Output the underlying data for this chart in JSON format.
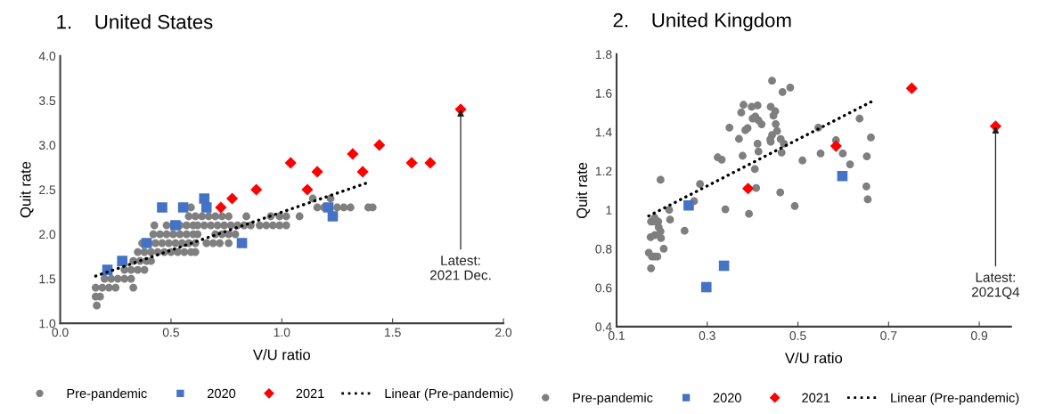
{
  "chart_data": [
    {
      "type": "scatter",
      "title": "1.    United States",
      "xlabel": "V/U ratio",
      "ylabel": "Quit rate",
      "xlim": [
        0,
        2
      ],
      "xticks": [
        {
          "value": 0,
          "label": "0.0"
        },
        0.5,
        {
          "value": 1,
          "label": "1.0"
        },
        1.5,
        {
          "value": 2,
          "label": "2.0"
        }
      ],
      "ylim": [
        1,
        4
      ],
      "yticks": [
        {
          "value": 1,
          "label": "1.0"
        },
        1.5,
        {
          "value": 2,
          "label": "2.0"
        },
        2.5,
        {
          "value": 3,
          "label": "3.0"
        },
        3.5,
        {
          "value": 4,
          "label": "4.0"
        }
      ],
      "legend": "bottom",
      "grid": false,
      "series": [
        {
          "name": "Pre-pandemic",
          "color": "#7f7f7f",
          "marker": "circle",
          "x": [
            0.165,
            0.16,
            0.18,
            0.16,
            0.19,
            0.22,
            0.25,
            0.33,
            0.2,
            0.23,
            0.26,
            0.29,
            0.32,
            0.29,
            0.32,
            0.35,
            0.38,
            0.33,
            0.36,
            0.39,
            0.41,
            0.35,
            0.38,
            0.41,
            0.44,
            0.47,
            0.5,
            0.53,
            0.56,
            0.59,
            0.61,
            0.37,
            0.4,
            0.43,
            0.46,
            0.49,
            0.52,
            0.55,
            0.58,
            0.61,
            0.66,
            0.69,
            0.72,
            0.76,
            0.42,
            0.45,
            0.48,
            0.51,
            0.54,
            0.57,
            0.6,
            0.62,
            0.7,
            0.73,
            0.76,
            0.79,
            0.425,
            0.48,
            0.51,
            0.54,
            0.57,
            0.6,
            0.62,
            0.65,
            0.68,
            0.71,
            0.74,
            0.77,
            0.8,
            0.83,
            0.86,
            0.9,
            0.93,
            0.96,
            0.99,
            1.02,
            0.58,
            0.61,
            0.64,
            0.67,
            0.7,
            0.73,
            0.76,
            0.84,
            0.95,
            0.99,
            1.02,
            1.08,
            0.59,
            1.16,
            1.19,
            1.25,
            1.28,
            1.31,
            1.39,
            1.41,
            1.14,
            1.22
          ],
          "values": [
            1.2,
            1.3,
            1.3,
            1.4,
            1.4,
            1.4,
            1.4,
            1.4,
            1.5,
            1.5,
            1.5,
            1.5,
            1.5,
            1.6,
            1.6,
            1.6,
            1.6,
            1.7,
            1.7,
            1.7,
            1.7,
            1.8,
            1.8,
            1.8,
            1.8,
            1.8,
            1.8,
            1.8,
            1.8,
            1.8,
            1.8,
            1.9,
            1.9,
            1.9,
            1.9,
            1.9,
            1.9,
            1.9,
            1.9,
            1.9,
            1.9,
            1.9,
            1.9,
            1.9,
            2.0,
            2.0,
            2.0,
            2.0,
            2.0,
            2.0,
            2.0,
            2.0,
            2.0,
            2.0,
            2.0,
            2.0,
            2.1,
            2.1,
            2.1,
            2.1,
            2.1,
            2.1,
            2.1,
            2.1,
            2.1,
            2.1,
            2.1,
            2.1,
            2.1,
            2.1,
            2.1,
            2.1,
            2.1,
            2.1,
            2.1,
            2.1,
            2.2,
            2.2,
            2.2,
            2.2,
            2.2,
            2.2,
            2.2,
            2.2,
            2.2,
            2.2,
            2.2,
            2.2,
            2.3,
            2.3,
            2.3,
            2.3,
            2.3,
            2.3,
            2.3,
            2.3,
            2.4,
            2.4
          ]
        },
        {
          "name": "2020",
          "color": "#4472c4",
          "marker": "square",
          "x": [
            0.213,
            0.28,
            0.39,
            0.46,
            0.52,
            0.555,
            0.65,
            0.66,
            0.82,
            1.21,
            1.23
          ],
          "values": [
            1.6,
            1.7,
            1.9,
            2.3,
            2.1,
            2.3,
            2.4,
            2.3,
            1.9,
            2.3,
            2.2
          ]
        },
        {
          "name": "2021",
          "color": "#ff0000",
          "marker": "diamond",
          "x": [
            0.725,
            0.776,
            0.885,
            1.04,
            1.115,
            1.16,
            1.32,
            1.365,
            1.44,
            1.586,
            1.67,
            1.807
          ],
          "values": [
            2.3,
            2.4,
            2.5,
            2.8,
            2.5,
            2.7,
            2.9,
            2.7,
            3.0,
            2.8,
            2.8,
            3.4
          ]
        },
        {
          "name": "Linear (Pre-pandemic)",
          "type": "line",
          "color": "#000000",
          "marker": "none",
          "line_style": "dotted",
          "x": [
            0.16,
            1.39
          ],
          "values": [
            1.53,
            2.58
          ]
        }
      ],
      "annotations": [
        {
          "text": "Latest:\n2021 Dec.",
          "x": 1.807,
          "y": 3.4
        }
      ]
    },
    {
      "type": "scatter",
      "title": "2.    United Kingdom",
      "xlabel": "V/U ratio",
      "ylabel": "Quit rate",
      "xlim": [
        0.1,
        0.97
      ],
      "xticks": [
        0.1,
        0.3,
        0.5,
        0.7,
        0.9
      ],
      "ylim": [
        0.4,
        1.8
      ],
      "yticks": [
        0.4,
        0.6,
        0.8,
        1,
        1.2,
        1.4,
        1.6,
        1.8
      ],
      "legend": "bottom",
      "grid": false,
      "series": [
        {
          "name": "Pre-pandemic",
          "color": "#7f7f7f",
          "marker": "circle",
          "x": [
            0.176,
            0.171,
            0.178,
            0.184,
            0.19,
            0.175,
            0.184,
            0.198,
            0.204,
            0.197,
            0.193,
            0.176,
            0.184,
            0.192,
            0.184,
            0.218,
            0.216,
            0.197,
            0.25,
            0.271,
            0.284,
            0.323,
            0.332,
            0.34,
            0.349,
            0.37,
            0.378,
            0.375,
            0.38,
            0.384,
            0.389,
            0.392,
            0.398,
            0.411,
            0.4,
            0.406,
            0.413,
            0.42,
            0.411,
            0.413,
            0.405,
            0.408,
            0.44,
            0.443,
            0.443,
            0.44,
            0.45,
            0.466,
            0.483,
            0.446,
            0.451,
            0.454,
            0.439,
            0.462,
            0.469,
            0.464,
            0.461,
            0.493,
            0.51,
            0.545,
            0.55,
            0.584,
            0.599,
            0.615,
            0.636,
            0.652,
            0.661,
            0.651,
            0.654
          ],
          "values": [
            0.7,
            0.78,
            0.76,
            0.76,
            0.76,
            0.86,
            0.87,
            0.855,
            0.8,
            0.89,
            0.91,
            0.94,
            0.94,
            0.94,
            0.96,
            0.95,
            1.0,
            1.155,
            0.893,
            1.045,
            1.133,
            1.27,
            1.258,
            1.003,
            1.423,
            1.365,
            1.278,
            1.5,
            1.54,
            1.41,
            1.42,
            0.98,
            1.53,
            1.537,
            1.47,
            1.48,
            1.46,
            1.44,
            1.34,
            1.3,
            1.21,
            1.113,
            1.53,
            1.664,
            1.385,
            1.35,
            1.507,
            1.606,
            1.629,
            1.484,
            1.441,
            1.406,
            1.362,
            1.364,
            1.34,
            1.295,
            1.09,
            1.02,
            1.254,
            1.423,
            1.29,
            1.358,
            1.29,
            1.234,
            1.469,
            1.275,
            1.372,
            1.121,
            1.054
          ]
        },
        {
          "name": "2020",
          "color": "#4472c4",
          "marker": "square",
          "x": [
            0.259,
            0.298,
            0.337,
            0.598
          ],
          "values": [
            1.023,
            0.603,
            0.713,
            1.174
          ]
        },
        {
          "name": "2021",
          "color": "#ff0000",
          "marker": "diamond",
          "x": [
            0.39,
            0.584,
            0.751,
            0.936
          ],
          "values": [
            1.11,
            1.328,
            1.625,
            1.43
          ]
        },
        {
          "name": "Linear (Pre-pandemic)",
          "type": "line",
          "color": "#000000",
          "marker": "none",
          "line_style": "dotted",
          "x": [
            0.171,
            0.662
          ],
          "values": [
            0.969,
            1.556
          ]
        }
      ],
      "annotations": [
        {
          "text": "Latest:\n2021Q4",
          "x": 0.936,
          "y": 1.43
        }
      ]
    }
  ]
}
